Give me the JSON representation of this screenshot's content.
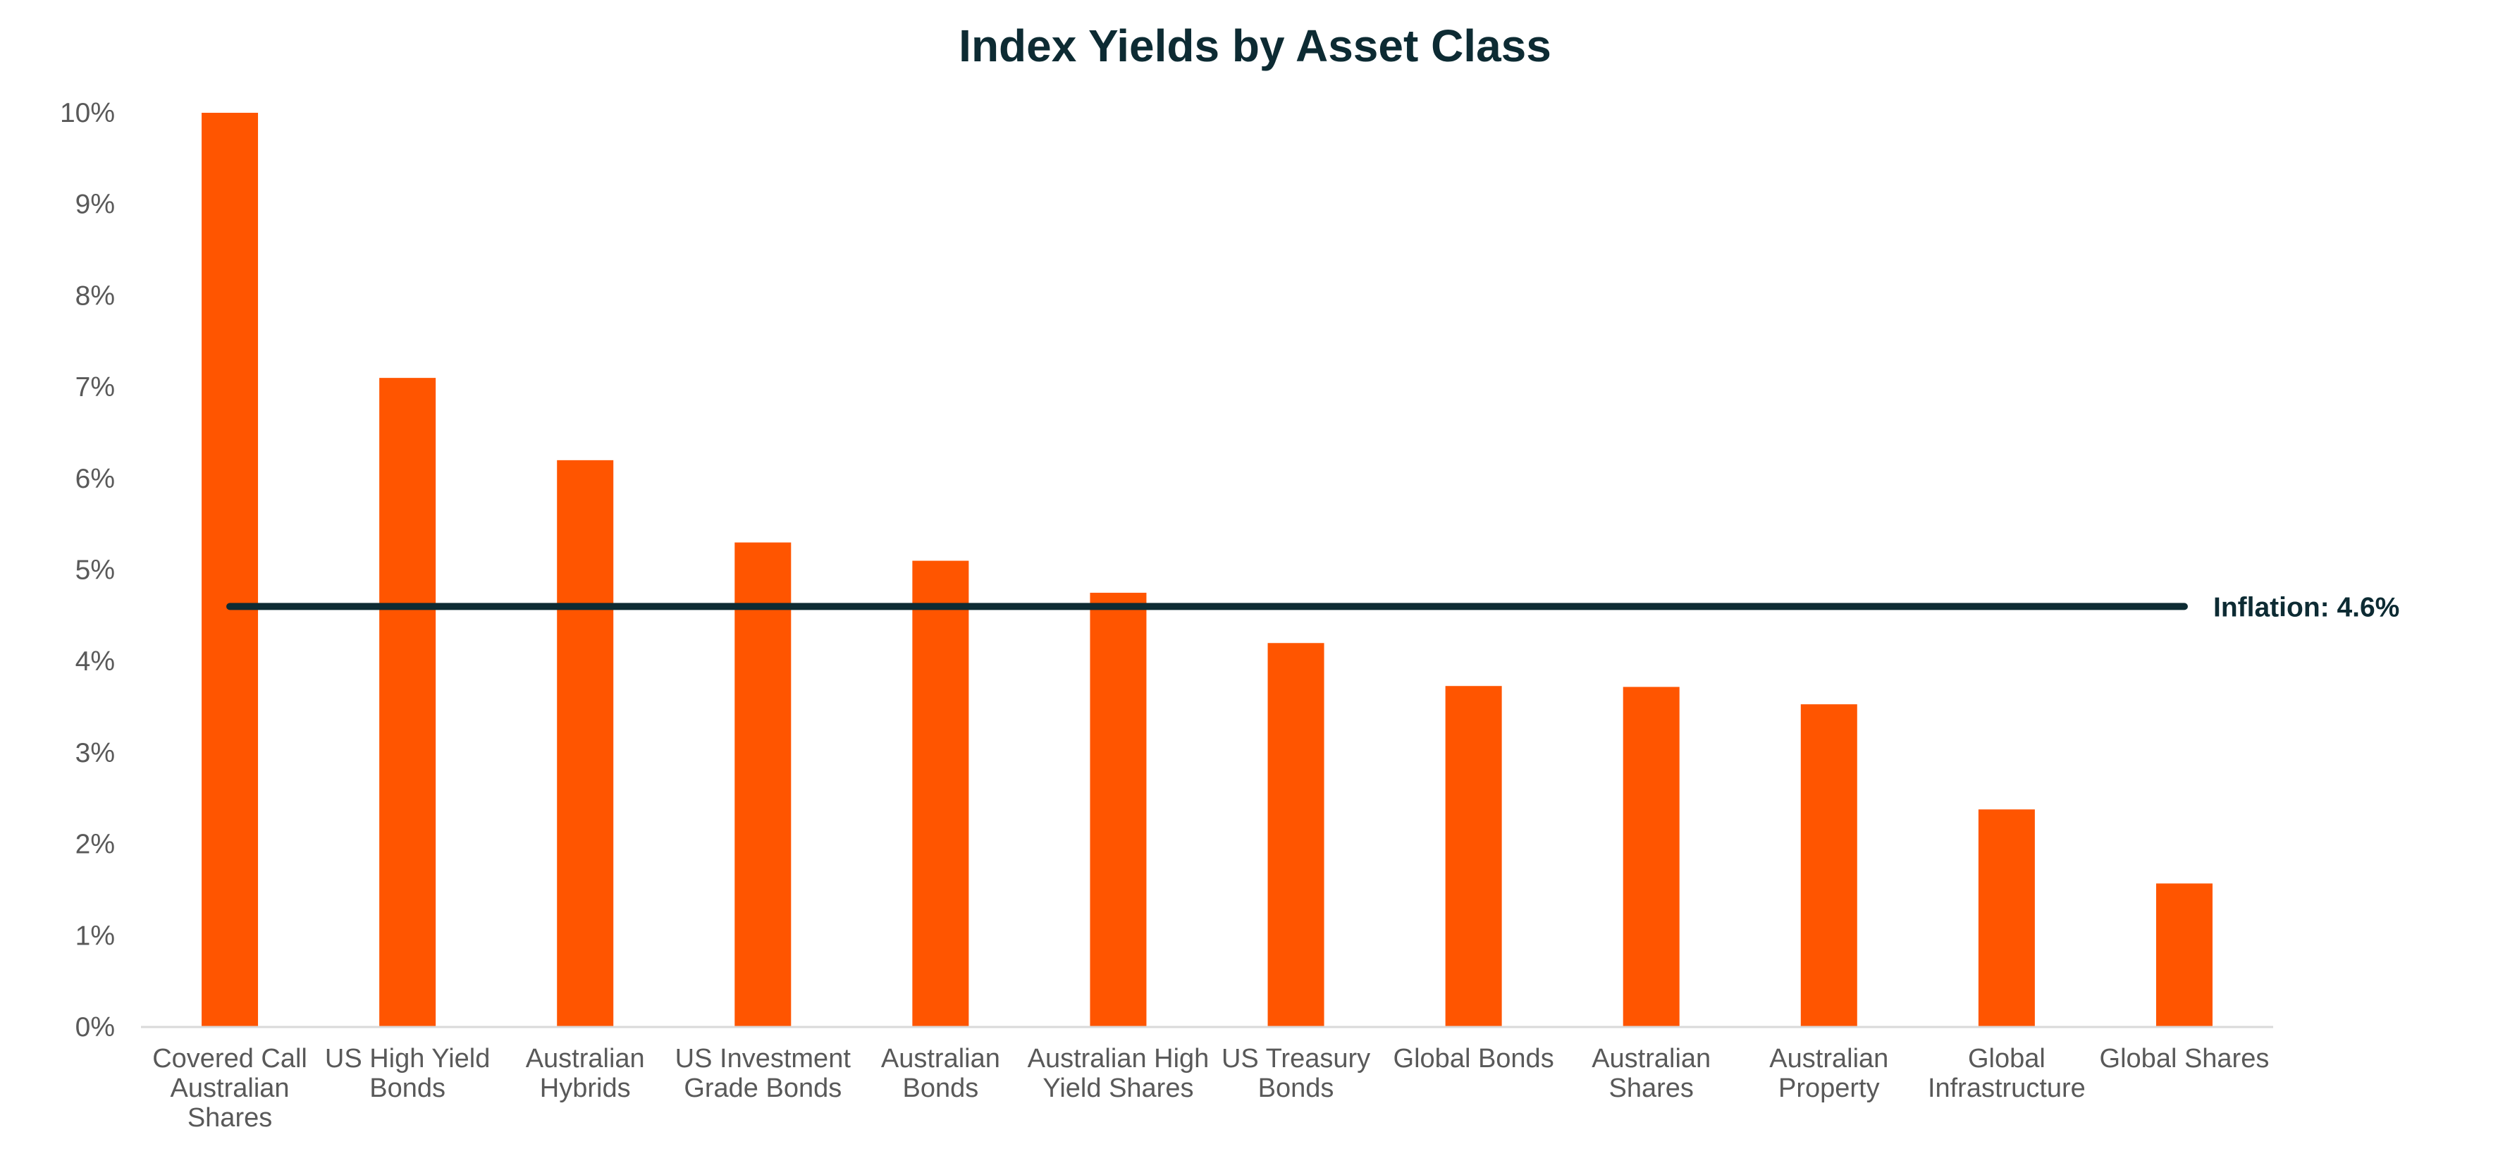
{
  "chart_data": {
    "type": "bar",
    "title": "Index Yields by Asset Class",
    "xlabel": "",
    "ylabel": "",
    "ylim": [
      0,
      10
    ],
    "y_tick_step": 1,
    "y_tick_format": "percent",
    "grid": false,
    "legend": "none",
    "bar_color": "#ff5500",
    "categories": [
      "Covered Call Australian Shares",
      "US High Yield Bonds",
      "Australian Hybrids",
      "US Investment Grade Bonds",
      "Australian Bonds",
      "Australian High Yield Shares",
      "US Treasury Bonds",
      "Global Bonds",
      "Australian Shares",
      "Australian Property",
      "Global Infrastructure",
      "Global Shares"
    ],
    "category_label_lines": [
      [
        "Covered Call",
        "Australian",
        "Shares"
      ],
      [
        "US High Yield",
        "Bonds"
      ],
      [
        "Australian",
        "Hybrids"
      ],
      [
        "US Investment",
        "Grade Bonds"
      ],
      [
        "Australian",
        "Bonds"
      ],
      [
        "Australian High",
        "Yield Shares"
      ],
      [
        "US Treasury",
        "Bonds"
      ],
      [
        "Global Bonds"
      ],
      [
        "Australian",
        "Shares"
      ],
      [
        "Australian",
        "Property"
      ],
      [
        "Global",
        "Infrastructure"
      ],
      [
        "Global Shares"
      ]
    ],
    "values": [
      10.0,
      7.1,
      6.2,
      5.3,
      5.1,
      4.75,
      4.2,
      3.73,
      3.72,
      3.53,
      2.38,
      1.57
    ],
    "reference_line": {
      "value": 4.6,
      "label": "Inflation: 4.6%",
      "color": "#0d2b33"
    }
  }
}
